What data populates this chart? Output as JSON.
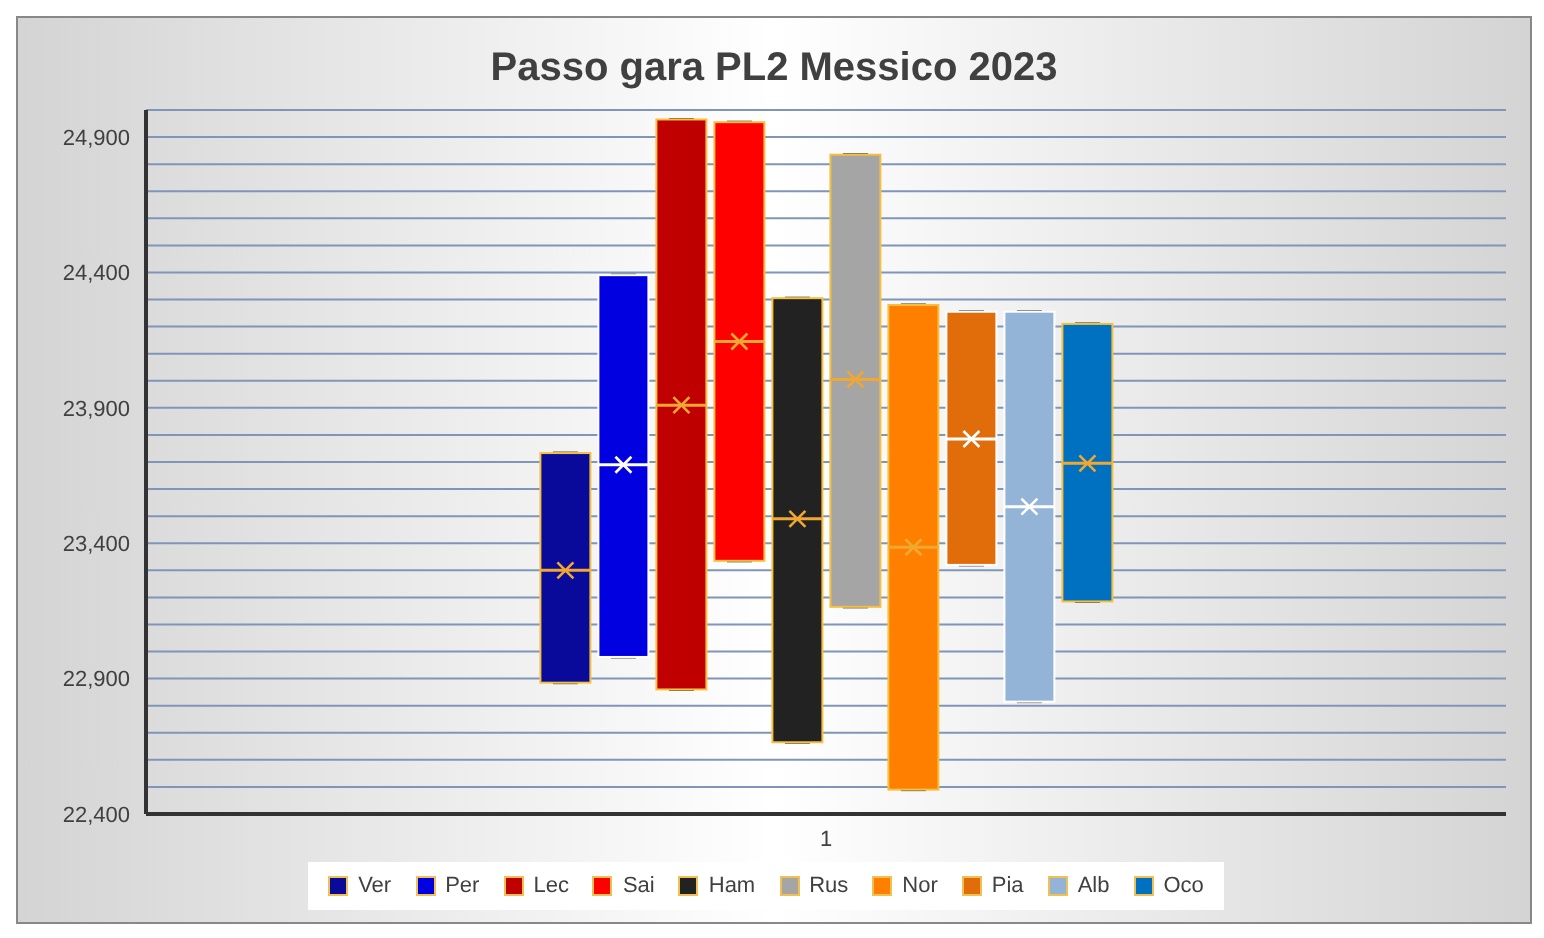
{
  "chart_data": {
    "type": "box",
    "title": "Passo gara PL2 Messico 2023",
    "categories": [
      "1"
    ],
    "ylim": [
      22400,
      25000
    ],
    "yticks": [
      {
        "value": 22400,
        "label": "22,400"
      },
      {
        "value": 22500,
        "label": null
      },
      {
        "value": 22600,
        "label": null
      },
      {
        "value": 22700,
        "label": null
      },
      {
        "value": 22800,
        "label": null
      },
      {
        "value": 22900,
        "label": "22,900"
      },
      {
        "value": 23000,
        "label": null
      },
      {
        "value": 23100,
        "label": null
      },
      {
        "value": 23200,
        "label": null
      },
      {
        "value": 23300,
        "label": null
      },
      {
        "value": 23400,
        "label": "23,400"
      },
      {
        "value": 23500,
        "label": null
      },
      {
        "value": 23600,
        "label": null
      },
      {
        "value": 23700,
        "label": null
      },
      {
        "value": 23800,
        "label": null
      },
      {
        "value": 23900,
        "label": "23,900"
      },
      {
        "value": 24000,
        "label": null
      },
      {
        "value": 24100,
        "label": null
      },
      {
        "value": 24200,
        "label": null
      },
      {
        "value": 24300,
        "label": null
      },
      {
        "value": 24400,
        "label": "24,400"
      },
      {
        "value": 24500,
        "label": null
      },
      {
        "value": 24600,
        "label": null
      },
      {
        "value": 24700,
        "label": null
      },
      {
        "value": 24800,
        "label": null
      },
      {
        "value": 24900,
        "label": "24,900"
      },
      {
        "value": 25000,
        "label": null
      }
    ],
    "grid": "y",
    "legend": "bottom",
    "series": [
      {
        "name": "Ver",
        "color": "#0a0a9a",
        "boxes": [
          {
            "low": 22885,
            "q1": 22885,
            "median": 23300,
            "q3": 23733,
            "high": 23733,
            "mean": 23300
          }
        ]
      },
      {
        "name": "Per",
        "color": "#0000e0",
        "boxes": [
          {
            "low": 22980,
            "q1": 22980,
            "median": 23690,
            "q3": 24390,
            "high": 24390,
            "mean": 23690
          }
        ]
      },
      {
        "name": "Lec",
        "color": "#c00000",
        "boxes": [
          {
            "low": 22860,
            "q1": 22860,
            "median": 23910,
            "q3": 24965,
            "high": 24965,
            "mean": 23910
          }
        ]
      },
      {
        "name": "Sai",
        "color": "#ff0000",
        "boxes": [
          {
            "low": 23335,
            "q1": 23335,
            "median": 24145,
            "q3": 24955,
            "high": 24955,
            "mean": 24145
          }
        ]
      },
      {
        "name": "Ham",
        "color": "#222222",
        "boxes": [
          {
            "low": 22665,
            "q1": 22665,
            "median": 23490,
            "q3": 24305,
            "high": 24305,
            "mean": 23490
          }
        ]
      },
      {
        "name": "Rus",
        "color": "#a5a5a5",
        "boxes": [
          {
            "low": 23165,
            "q1": 23165,
            "median": 24005,
            "q3": 24835,
            "high": 24835,
            "mean": 24005
          }
        ]
      },
      {
        "name": "Nor",
        "color": "#ff8000",
        "boxes": [
          {
            "low": 22490,
            "q1": 22490,
            "median": 23385,
            "q3": 24280,
            "high": 24280,
            "mean": 23385
          }
        ]
      },
      {
        "name": "Pia",
        "color": "#e06c0a",
        "boxes": [
          {
            "low": 23320,
            "q1": 23320,
            "median": 23785,
            "q3": 24255,
            "high": 24255,
            "mean": 23785
          }
        ]
      },
      {
        "name": "Alb",
        "color": "#93b3d7",
        "boxes": [
          {
            "low": 22815,
            "q1": 22815,
            "median": 23535,
            "q3": 24255,
            "high": 24255,
            "mean": 23535
          }
        ]
      },
      {
        "name": "Oco",
        "color": "#0070c0",
        "boxes": [
          {
            "low": 23185,
            "q1": 23185,
            "median": 23695,
            "q3": 24210,
            "high": 24210,
            "mean": 23695
          }
        ]
      }
    ]
  }
}
